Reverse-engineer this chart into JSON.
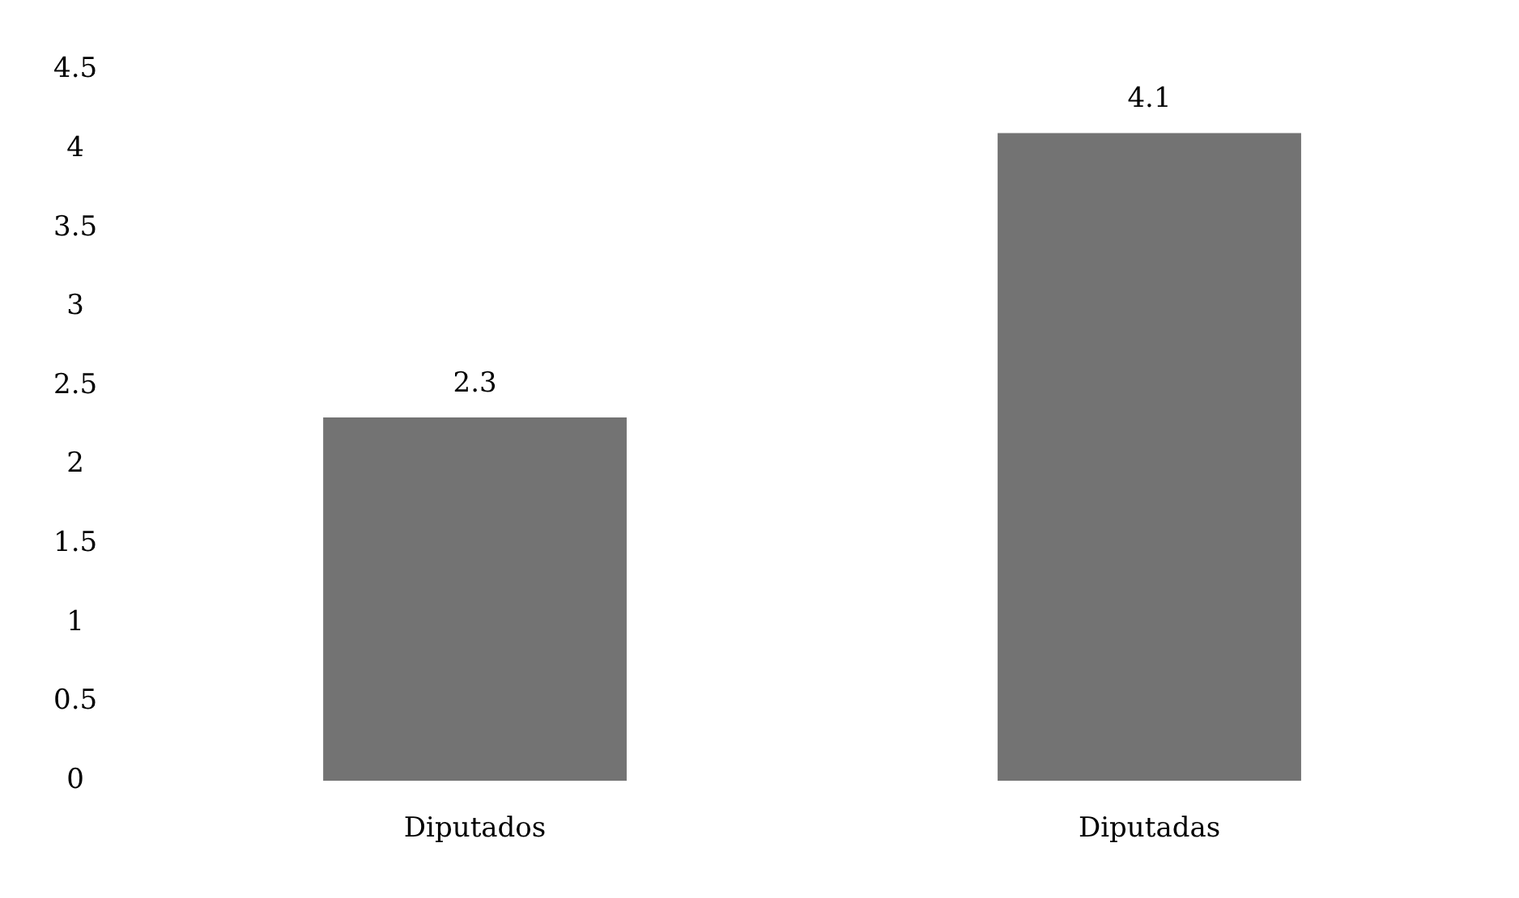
{
  "chart_data": {
    "type": "bar",
    "categories": [
      "Diputados",
      "Diputadas"
    ],
    "values": [
      2.3,
      4.1
    ],
    "color": "#737373",
    "ylim": [
      0,
      4.5
    ],
    "yticks": [
      0,
      0.5,
      1,
      1.5,
      2,
      2.5,
      3,
      3.5,
      4,
      4.5
    ],
    "data_labels": true,
    "grid": false,
    "legend": false
  }
}
